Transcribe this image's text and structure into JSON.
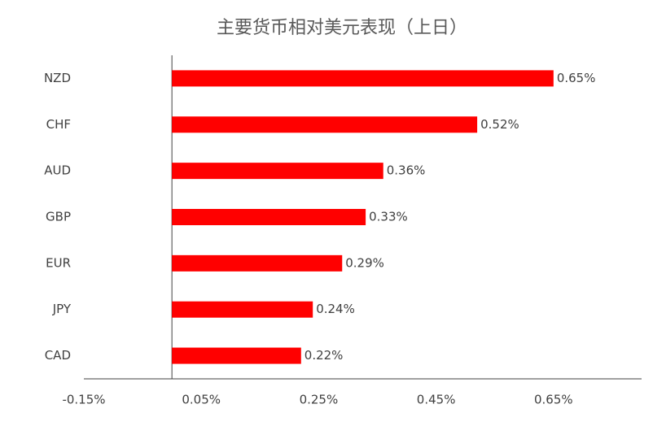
{
  "chart_data": {
    "type": "bar",
    "orientation": "horizontal",
    "title": "主要货币相对美元表现（上日）",
    "categories": [
      "NZD",
      "CHF",
      "AUD",
      "GBP",
      "EUR",
      "JPY",
      "CAD"
    ],
    "values": [
      0.65,
      0.52,
      0.36,
      0.33,
      0.29,
      0.24,
      0.22
    ],
    "value_labels": [
      "0.65%",
      "0.52%",
      "0.36%",
      "0.33%",
      "0.29%",
      "0.24%",
      "0.22%"
    ],
    "color": "#ff0000",
    "xlim": [
      -0.15,
      0.8
    ],
    "xticks": [
      {
        "value": -0.15,
        "label": "-0.15%"
      },
      {
        "value": 0.05,
        "label": "0.05%"
      },
      {
        "value": 0.25,
        "label": "0.25%"
      },
      {
        "value": 0.45,
        "label": "0.45%"
      },
      {
        "value": 0.65,
        "label": "0.65%"
      }
    ],
    "grid": false
  }
}
